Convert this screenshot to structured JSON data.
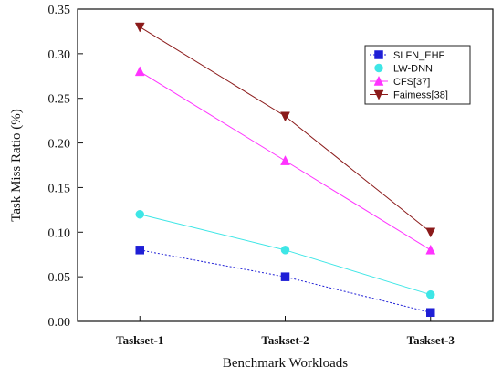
{
  "chart_data": {
    "type": "line",
    "categories": [
      "Taskset-1",
      "Taskset-2",
      "Taskset-3"
    ],
    "xlabel": "Benchmark Workloads",
    "ylabel": "Task Miss Ratio (%)",
    "ylim": [
      0,
      0.35
    ],
    "yticks": [
      "0.00",
      "0.05",
      "0.10",
      "0.15",
      "0.20",
      "0.25",
      "0.30",
      "0.35"
    ],
    "grid": false,
    "legend_position": "top-right",
    "series": [
      {
        "name": "SLFN_EHF",
        "values": [
          0.08,
          0.05,
          0.01
        ],
        "color": "#1f1fd6",
        "marker": "square",
        "dashed": true
      },
      {
        "name": "LW-DNN",
        "values": [
          0.12,
          0.08,
          0.03
        ],
        "color": "#3ee6e6",
        "marker": "circle",
        "dashed": false
      },
      {
        "name": "CFS[37]",
        "values": [
          0.28,
          0.18,
          0.08
        ],
        "color": "#ff33ff",
        "marker": "triangle-up",
        "dashed": false
      },
      {
        "name": "Faimess[38]",
        "values": [
          0.33,
          0.23,
          0.1
        ],
        "color": "#8b1a1a",
        "marker": "triangle-down",
        "dashed": false
      }
    ]
  }
}
